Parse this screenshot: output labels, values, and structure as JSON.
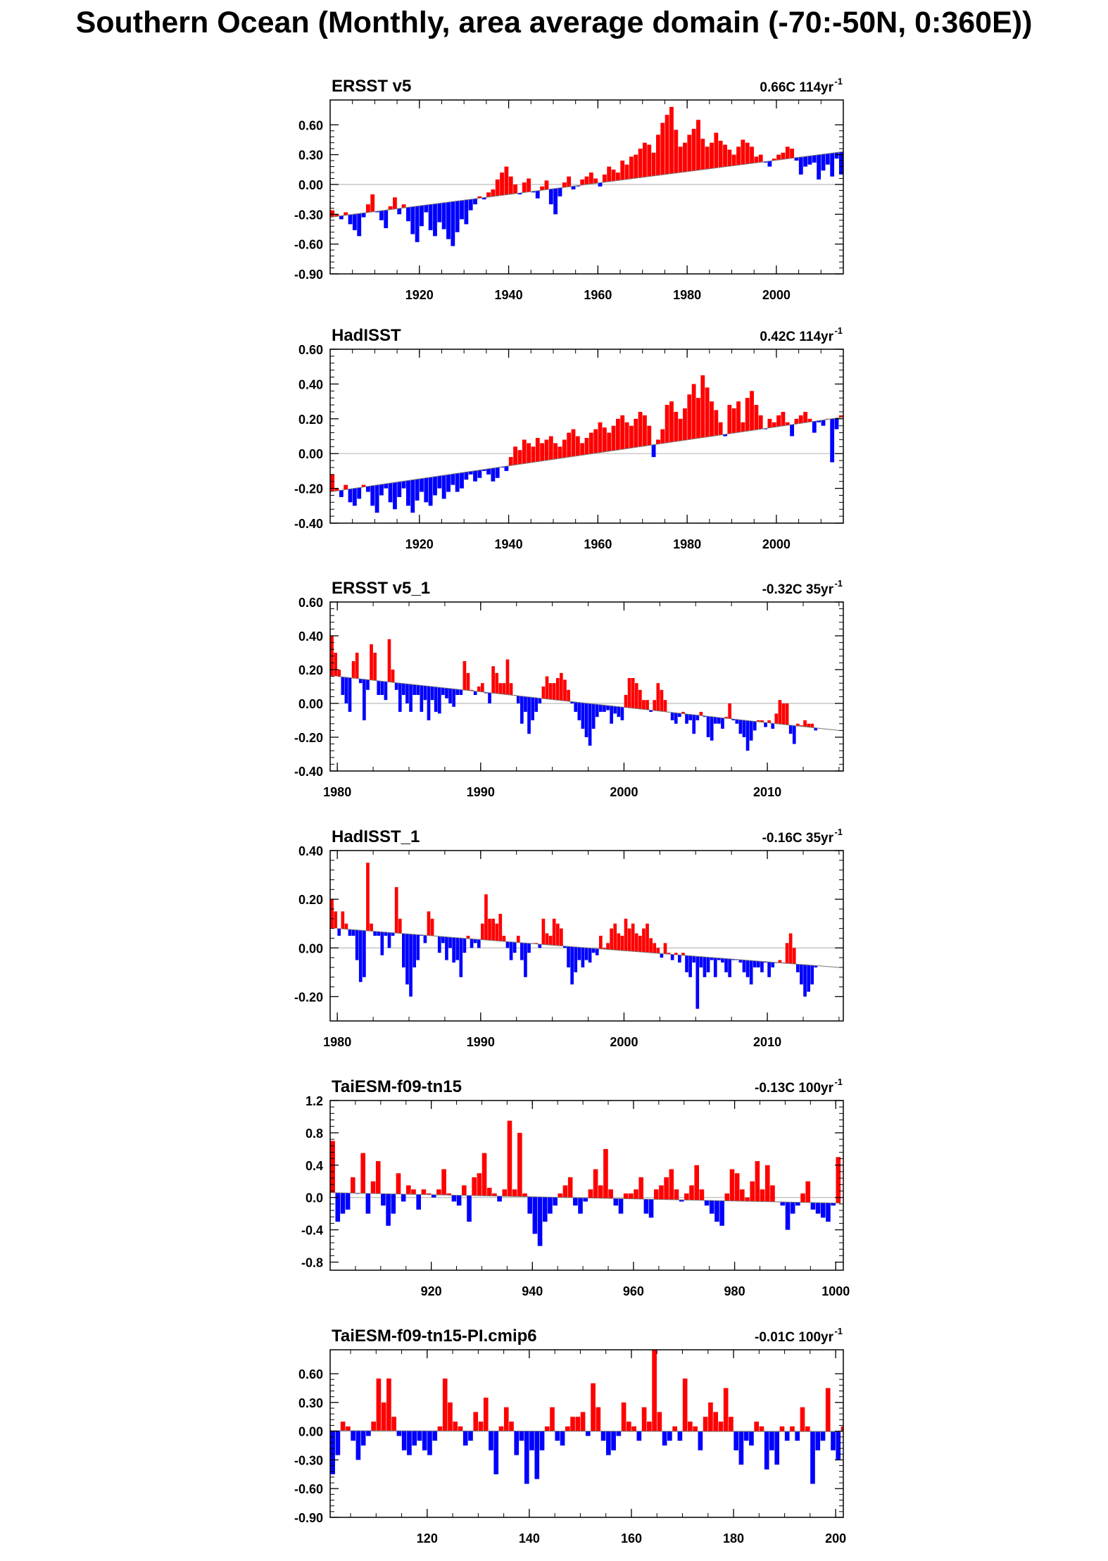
{
  "title": "Southern Ocean (Monthly, area average domain (-70:-50N, 0:360E))",
  "colors": {
    "positive": "#ff0000",
    "negative": "#0000ff",
    "zero_line": "#bbbbbb",
    "axis": "#000000"
  },
  "chart_data": [
    {
      "type": "area",
      "title": "ERSST v5",
      "trend_label": "0.66C 114yr",
      "trend_exponent": "-1",
      "xlim": [
        1900,
        2015
      ],
      "ylim": [
        -0.9,
        0.85
      ],
      "xticks": [
        1920,
        1940,
        1960,
        1980,
        2000
      ],
      "xtick_labels": [
        "1920",
        "1940",
        "1960",
        "1980",
        "2000"
      ],
      "yticks": [
        -0.9,
        -0.6,
        -0.3,
        0.0,
        0.3,
        0.6
      ],
      "ytick_labels": [
        "-0.90",
        "-0.60",
        "-0.30",
        "0.00",
        "0.30",
        "0.60"
      ],
      "trend_line": {
        "x": [
          1900,
          2015
        ],
        "y": [
          -0.33,
          0.33
        ]
      },
      "series_x_step": 1,
      "series_values": [
        -0.26,
        -0.3,
        -0.35,
        -0.28,
        -0.4,
        -0.46,
        -0.52,
        -0.33,
        -0.2,
        -0.1,
        -0.28,
        -0.36,
        -0.44,
        -0.22,
        -0.13,
        -0.3,
        -0.2,
        -0.37,
        -0.5,
        -0.58,
        -0.42,
        -0.28,
        -0.46,
        -0.52,
        -0.38,
        -0.45,
        -0.55,
        -0.62,
        -0.48,
        -0.35,
        -0.4,
        -0.26,
        -0.2,
        -0.12,
        -0.15,
        -0.08,
        -0.05,
        0.05,
        0.12,
        0.18,
        0.08,
        0.0,
        -0.1,
        0.02,
        0.06,
        -0.08,
        -0.14,
        -0.02,
        0.04,
        -0.2,
        -0.3,
        -0.12,
        0.02,
        0.08,
        -0.05,
        -0.02,
        0.05,
        0.08,
        0.12,
        0.06,
        -0.02,
        0.1,
        0.18,
        0.15,
        0.12,
        0.24,
        0.2,
        0.28,
        0.3,
        0.36,
        0.42,
        0.4,
        0.32,
        0.5,
        0.62,
        0.7,
        0.78,
        0.55,
        0.38,
        0.42,
        0.5,
        0.56,
        0.65,
        0.46,
        0.38,
        0.42,
        0.52,
        0.44,
        0.4,
        0.35,
        0.3,
        0.38,
        0.45,
        0.42,
        0.38,
        0.28,
        0.3,
        0.22,
        0.18,
        0.26,
        0.3,
        0.32,
        0.38,
        0.36,
        0.24,
        0.1,
        0.18,
        0.2,
        0.22,
        0.05,
        0.14,
        0.2,
        0.08,
        0.26,
        0.1,
        0.18
      ]
    },
    {
      "type": "area",
      "title": "HadISST",
      "trend_label": "0.42C 114yr",
      "trend_exponent": "-1",
      "xlim": [
        1900,
        2015
      ],
      "ylim": [
        -0.4,
        0.6
      ],
      "xticks": [
        1920,
        1940,
        1960,
        1980,
        2000
      ],
      "xtick_labels": [
        "1920",
        "1940",
        "1960",
        "1980",
        "2000"
      ],
      "yticks": [
        -0.4,
        -0.2,
        0.0,
        0.2,
        0.4,
        0.6
      ],
      "ytick_labels": [
        "-0.40",
        "-0.20",
        "0.00",
        "0.20",
        "0.40",
        "0.60"
      ],
      "trend_line": {
        "x": [
          1900,
          2015
        ],
        "y": [
          -0.22,
          0.21
        ]
      },
      "series_x_step": 1,
      "series_values": [
        -0.12,
        -0.2,
        -0.25,
        -0.18,
        -0.28,
        -0.3,
        -0.26,
        -0.18,
        -0.22,
        -0.3,
        -0.34,
        -0.24,
        -0.2,
        -0.28,
        -0.32,
        -0.25,
        -0.2,
        -0.3,
        -0.34,
        -0.27,
        -0.22,
        -0.28,
        -0.3,
        -0.24,
        -0.2,
        -0.26,
        -0.22,
        -0.18,
        -0.22,
        -0.2,
        -0.15,
        -0.12,
        -0.16,
        -0.14,
        -0.1,
        -0.12,
        -0.16,
        -0.14,
        -0.08,
        -0.1,
        -0.02,
        0.04,
        0.02,
        0.08,
        0.06,
        0.04,
        0.09,
        0.06,
        0.08,
        0.1,
        0.06,
        0.04,
        0.08,
        0.12,
        0.14,
        0.1,
        0.06,
        0.09,
        0.12,
        0.14,
        0.18,
        0.15,
        0.12,
        0.16,
        0.2,
        0.22,
        0.18,
        0.16,
        0.2,
        0.24,
        0.22,
        0.16,
        -0.02,
        0.08,
        0.14,
        0.28,
        0.3,
        0.24,
        0.2,
        0.26,
        0.34,
        0.4,
        0.32,
        0.45,
        0.38,
        0.3,
        0.25,
        0.18,
        0.1,
        0.28,
        0.26,
        0.3,
        0.18,
        0.32,
        0.36,
        0.28,
        0.22,
        0.14,
        0.2,
        0.18,
        0.22,
        0.24,
        0.18,
        0.1,
        0.2,
        0.22,
        0.24,
        0.2,
        0.12,
        0.18,
        0.16,
        0.2,
        -0.05,
        0.14,
        0.22,
        0.1
      ]
    },
    {
      "type": "area",
      "title": "ERSST v5_1",
      "trend_label": "-0.32C 35yr",
      "trend_exponent": "-1",
      "xlim": [
        1979.5,
        2015.3
      ],
      "ylim": [
        -0.4,
        0.6
      ],
      "xticks": [
        1980,
        1990,
        2000,
        2010
      ],
      "xtick_labels": [
        "1980",
        "1990",
        "2000",
        "2010"
      ],
      "yticks": [
        -0.4,
        -0.2,
        0.0,
        0.2,
        0.4,
        0.6
      ],
      "ytick_labels": [
        "-0.40",
        "-0.20",
        "0.00",
        "0.20",
        "0.40",
        "0.60"
      ],
      "trend_line": {
        "x": [
          1980,
          2015
        ],
        "y": [
          0.16,
          -0.16
        ]
      },
      "series_x_step": 0.25,
      "series_values": [
        0.4,
        0.3,
        0.2,
        0.05,
        0.0,
        -0.05,
        0.25,
        0.3,
        0.12,
        -0.1,
        0.08,
        0.35,
        0.3,
        0.05,
        0.05,
        0.02,
        0.38,
        0.2,
        0.08,
        -0.05,
        0.05,
        0.0,
        -0.05,
        0.05,
        0.05,
        -0.05,
        0.02,
        -0.1,
        0.02,
        -0.05,
        -0.06,
        0.05,
        0.03,
        0.0,
        -0.02,
        0.05,
        0.05,
        0.25,
        0.18,
        0.08,
        0.05,
        0.1,
        0.12,
        0.06,
        0.0,
        0.22,
        0.18,
        0.12,
        0.12,
        0.26,
        0.12,
        0.05,
        0.0,
        -0.12,
        -0.05,
        -0.18,
        -0.1,
        -0.05,
        0.0,
        0.1,
        0.16,
        0.12,
        0.12,
        0.15,
        0.18,
        0.14,
        0.08,
        0.0,
        -0.05,
        -0.1,
        -0.15,
        -0.2,
        -0.25,
        -0.15,
        -0.08,
        -0.05,
        -0.05,
        -0.04,
        -0.12,
        -0.06,
        -0.08,
        -0.1,
        0.05,
        0.15,
        0.15,
        0.12,
        0.08,
        0.02,
        0.02,
        -0.05,
        0.02,
        0.12,
        0.08,
        0.02,
        -0.05,
        -0.1,
        -0.12,
        -0.08,
        -0.05,
        -0.12,
        -0.1,
        -0.18,
        -0.1,
        -0.05,
        -0.08,
        -0.2,
        -0.22,
        -0.12,
        -0.12,
        -0.15,
        -0.08,
        0.0,
        -0.1,
        -0.12,
        -0.18,
        -0.2,
        -0.28,
        -0.22,
        -0.16,
        -0.1,
        -0.1,
        -0.14,
        -0.1,
        -0.15,
        -0.06,
        0.02,
        0.0,
        0.0,
        -0.18,
        -0.24,
        -0.12,
        -0.13,
        -0.1,
        -0.12,
        -0.12,
        -0.16
      ]
    },
    {
      "type": "area",
      "title": "HadISST_1",
      "trend_label": "-0.16C 35yr",
      "trend_exponent": "-1",
      "xlim": [
        1979.5,
        2015.3
      ],
      "ylim": [
        -0.3,
        0.4
      ],
      "xticks": [
        1980,
        1990,
        2000,
        2010
      ],
      "xtick_labels": [
        "1980",
        "1990",
        "2000",
        "2010"
      ],
      "yticks": [
        -0.2,
        0.0,
        0.2,
        0.4
      ],
      "ytick_labels": [
        "-0.20",
        "0.00",
        "0.20",
        "0.40"
      ],
      "trend_line": {
        "x": [
          1980,
          2015
        ],
        "y": [
          0.08,
          -0.08
        ]
      },
      "series_x_step": 0.25,
      "series_values": [
        0.2,
        0.15,
        0.05,
        0.15,
        0.1,
        0.05,
        0.05,
        -0.05,
        -0.14,
        -0.12,
        0.35,
        0.1,
        0.05,
        0.05,
        -0.03,
        0.05,
        0.0,
        0.05,
        0.25,
        0.12,
        -0.08,
        -0.15,
        -0.2,
        -0.08,
        -0.05,
        0.05,
        0.02,
        0.15,
        0.12,
        0.05,
        -0.02,
        0.02,
        -0.05,
        0.0,
        -0.06,
        -0.05,
        -0.12,
        -0.02,
        0.05,
        0.0,
        0.02,
        0.0,
        0.1,
        0.22,
        0.12,
        0.12,
        0.1,
        0.14,
        0.05,
        0.0,
        -0.05,
        -0.02,
        0.05,
        -0.05,
        -0.12,
        -0.02,
        0.02,
        0.02,
        0.0,
        0.12,
        0.06,
        0.05,
        0.12,
        0.1,
        0.08,
        0.0,
        -0.08,
        -0.15,
        -0.1,
        -0.05,
        -0.08,
        -0.05,
        -0.06,
        -0.02,
        -0.03,
        0.05,
        0.0,
        0.02,
        0.08,
        0.1,
        0.06,
        0.05,
        0.12,
        0.08,
        0.1,
        0.06,
        0.05,
        0.08,
        0.1,
        0.04,
        0.02,
        0.0,
        -0.04,
        0.02,
        -0.02,
        -0.05,
        -0.02,
        -0.06,
        -0.02,
        -0.1,
        -0.12,
        -0.06,
        -0.25,
        -0.08,
        -0.12,
        -0.1,
        -0.05,
        -0.12,
        -0.05,
        -0.06,
        -0.1,
        -0.12,
        -0.05,
        -0.05,
        -0.06,
        -0.1,
        -0.12,
        -0.15,
        -0.08,
        -0.08,
        -0.1,
        -0.06,
        -0.12,
        -0.08,
        -0.06,
        -0.05,
        -0.06,
        0.02,
        0.06,
        0.0,
        -0.1,
        -0.15,
        -0.2,
        -0.18,
        -0.15,
        -0.08
      ]
    },
    {
      "type": "area",
      "title": "TaiESM-f09-tn15",
      "trend_label": "-0.13C 100yr",
      "trend_exponent": "-1",
      "xlim": [
        900,
        1001.5
      ],
      "ylim": [
        -0.9,
        1.2
      ],
      "xticks": [
        920,
        940,
        960,
        980,
        1000
      ],
      "xtick_labels": [
        "920",
        "940",
        "960",
        "980",
        "1000"
      ],
      "yticks": [
        -0.8,
        -0.4,
        0.0,
        0.4,
        0.8,
        1.2
      ],
      "ytick_labels": [
        "-0.8",
        "-0.4",
        "0.0",
        "0.4",
        "0.8",
        "1.2"
      ],
      "trend_line": {
        "x": [
          900,
          1001
        ],
        "y": [
          0.06,
          -0.07
        ]
      },
      "series_x_step": 1,
      "series_values": [
        0.7,
        -0.3,
        -0.2,
        -0.15,
        0.25,
        0.05,
        0.55,
        -0.2,
        0.2,
        0.45,
        -0.1,
        -0.35,
        -0.2,
        0.3,
        -0.05,
        0.15,
        0.1,
        -0.15,
        0.1,
        0.05,
        0.0,
        0.1,
        0.35,
        0.05,
        -0.05,
        -0.1,
        0.15,
        -0.3,
        0.25,
        0.3,
        0.55,
        0.12,
        0.05,
        -0.05,
        0.1,
        0.95,
        0.1,
        0.8,
        0.05,
        -0.2,
        -0.45,
        -0.6,
        -0.3,
        -0.2,
        -0.1,
        0.05,
        0.15,
        0.25,
        -0.1,
        -0.2,
        -0.05,
        0.1,
        0.35,
        0.15,
        0.6,
        0.1,
        -0.1,
        -0.2,
        0.05,
        0.05,
        0.1,
        0.25,
        -0.2,
        -0.25,
        0.1,
        0.15,
        0.25,
        0.35,
        0.1,
        -0.05,
        0.05,
        0.15,
        0.4,
        0.1,
        -0.1,
        -0.2,
        -0.3,
        -0.35,
        0.05,
        0.35,
        0.3,
        0.1,
        0.0,
        0.2,
        0.45,
        0.1,
        0.4,
        0.15,
        -0.05,
        -0.1,
        -0.4,
        -0.2,
        -0.1,
        0.05,
        0.2,
        -0.15,
        -0.2,
        -0.25,
        -0.3,
        -0.1,
        0.5
      ]
    },
    {
      "type": "area",
      "title": "TaiESM-f09-tn15-PI.cmip6",
      "trend_label": "-0.01C 100yr",
      "trend_exponent": "-1",
      "xlim": [
        101,
        201.5
      ],
      "ylim": [
        -0.9,
        0.85
      ],
      "xticks": [
        120,
        140,
        160,
        180,
        200
      ],
      "xtick_labels": [
        "120",
        "140",
        "160",
        "180",
        "200"
      ],
      "yticks": [
        -0.9,
        -0.6,
        -0.3,
        0.0,
        0.3,
        0.6
      ],
      "ytick_labels": [
        "-0.90",
        "-0.60",
        "-0.30",
        "0.00",
        "0.30",
        "0.60"
      ],
      "trend_line": {
        "x": [
          101,
          201
        ],
        "y": [
          0.005,
          -0.005
        ]
      },
      "series_x_step": 1,
      "series_values": [
        -0.45,
        -0.25,
        0.1,
        0.05,
        -0.1,
        -0.3,
        -0.15,
        -0.05,
        0.1,
        0.55,
        0.3,
        0.55,
        0.15,
        -0.05,
        -0.2,
        -0.25,
        -0.15,
        -0.1,
        -0.2,
        -0.25,
        -0.1,
        0.05,
        0.55,
        0.3,
        0.1,
        0.05,
        -0.15,
        -0.1,
        0.2,
        0.1,
        0.35,
        -0.2,
        -0.45,
        0.05,
        0.25,
        0.1,
        -0.25,
        -0.1,
        -0.55,
        -0.2,
        -0.5,
        -0.2,
        0.05,
        0.25,
        -0.1,
        -0.15,
        0.05,
        0.15,
        0.15,
        0.2,
        -0.05,
        0.5,
        0.25,
        -0.1,
        -0.25,
        -0.2,
        -0.05,
        0.3,
        0.1,
        0.05,
        -0.1,
        0.25,
        0.1,
        0.85,
        0.2,
        -0.15,
        -0.1,
        0.05,
        -0.1,
        0.55,
        0.1,
        0.05,
        -0.2,
        0.15,
        0.3,
        0.2,
        0.1,
        0.45,
        0.15,
        -0.2,
        -0.35,
        -0.1,
        -0.15,
        0.1,
        0.05,
        -0.4,
        -0.2,
        -0.35,
        0.05,
        -0.1,
        0.05,
        -0.1,
        0.25,
        0.05,
        -0.55,
        -0.2,
        -0.1,
        0.45,
        -0.2,
        -0.3,
        0.05
      ]
    }
  ]
}
